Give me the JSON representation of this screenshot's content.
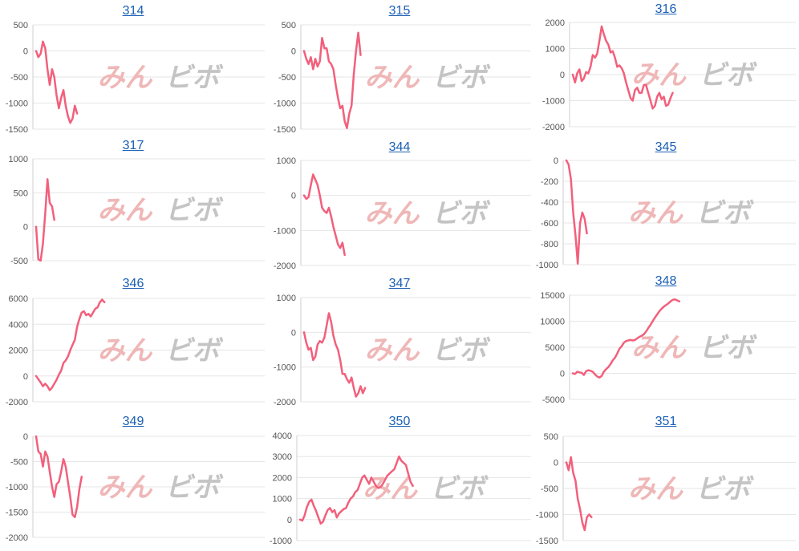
{
  "watermark": {
    "left": "みん",
    "right": "ビボ"
  },
  "colors": {
    "line": "#f2607c",
    "grid": "#e6e6e6",
    "axis": "#cfcfcf",
    "title": "#1a5fb4"
  },
  "chart_data": [
    {
      "type": "line",
      "title": "314",
      "ylim": [
        -1500,
        500
      ],
      "yticks": [
        500,
        0,
        -500,
        -1000,
        -1500
      ],
      "x_max": 100,
      "values": [
        0,
        -120,
        -50,
        180,
        50,
        -350,
        -650,
        -350,
        -500,
        -850,
        -1100,
        -900,
        -750,
        -1050,
        -1250,
        -1380,
        -1300,
        -1050,
        -1200
      ]
    },
    {
      "type": "line",
      "title": "315",
      "ylim": [
        -1500,
        500
      ],
      "yticks": [
        500,
        0,
        -500,
        -1000,
        -1500
      ],
      "x_max": 100,
      "values": [
        0,
        -150,
        -250,
        -120,
        -350,
        -150,
        -300,
        -200,
        250,
        50,
        50,
        -200,
        -250,
        -350,
        -650,
        -900,
        -1100,
        -1050,
        -1350,
        -1480,
        -1200,
        -1050,
        -450,
        0,
        350,
        -80
      ]
    },
    {
      "type": "line",
      "title": "316",
      "ylim": [
        -2000,
        2000
      ],
      "yticks": [
        2000,
        1000,
        0,
        -1000,
        -2000
      ],
      "x_max": 100,
      "values": [
        0,
        -300,
        50,
        200,
        -250,
        -150,
        100,
        50,
        300,
        750,
        650,
        800,
        1300,
        1850,
        1550,
        1300,
        1150,
        850,
        900,
        650,
        300,
        350,
        250,
        50,
        -300,
        -600,
        -900,
        -1000,
        -600,
        -500,
        -700,
        -700,
        -400,
        -400,
        -700,
        -1000,
        -1300,
        -1200,
        -850,
        -700,
        -950,
        -850,
        -1200,
        -1150,
        -900,
        -700
      ]
    },
    {
      "type": "line",
      "title": "317",
      "ylim": [
        -500,
        1000
      ],
      "yticks": [
        1000,
        500,
        0,
        -500
      ],
      "x_max": 100,
      "values": [
        0,
        -480,
        -500,
        -250,
        200,
        700,
        350,
        300,
        100
      ]
    },
    {
      "type": "line",
      "title": "344",
      "ylim": [
        -2000,
        1000
      ],
      "yticks": [
        1000,
        0,
        -1000,
        -2000
      ],
      "x_max": 100,
      "values": [
        0,
        -100,
        -50,
        300,
        600,
        450,
        300,
        0,
        -350,
        -450,
        -500,
        -350,
        -600,
        -900,
        -1150,
        -1400,
        -1500,
        -1350,
        -1700
      ]
    },
    {
      "type": "line",
      "title": "345",
      "ylim": [
        -1000,
        0
      ],
      "yticks": [
        0,
        -200,
        -400,
        -600,
        -800,
        -1000
      ],
      "x_max": 100,
      "values": [
        0,
        -40,
        -180,
        -500,
        -720,
        -990,
        -600,
        -500,
        -560,
        -700
      ]
    },
    {
      "type": "line",
      "title": "346",
      "ylim": [
        -2000,
        6000
      ],
      "yticks": [
        6000,
        4000,
        2000,
        0,
        -2000
      ],
      "x_max": 100,
      "values": [
        0,
        -250,
        -500,
        -800,
        -600,
        -800,
        -1100,
        -900,
        -600,
        -300,
        100,
        400,
        1000,
        1200,
        1500,
        2000,
        2400,
        2800,
        3800,
        4400,
        4900,
        5000,
        4700,
        4800,
        4600,
        4900,
        5200,
        5300,
        5700,
        5900,
        5700
      ]
    },
    {
      "type": "line",
      "title": "347",
      "ylim": [
        -2000,
        1000
      ],
      "yticks": [
        1000,
        0,
        -1000,
        -2000
      ],
      "x_max": 100,
      "values": [
        0,
        -300,
        -500,
        -450,
        -800,
        -700,
        -350,
        -250,
        -300,
        -150,
        200,
        550,
        300,
        -100,
        -350,
        -500,
        -800,
        -1200,
        -1200,
        -1350,
        -1450,
        -1300,
        -1600,
        -1850,
        -1750,
        -1550,
        -1750,
        -1600
      ]
    },
    {
      "type": "line",
      "title": "348",
      "ylim": [
        -5000,
        15000
      ],
      "yticks": [
        15000,
        10000,
        5000,
        0,
        -5000
      ],
      "x_max": 100,
      "values": [
        0,
        -100,
        300,
        200,
        100,
        -300,
        400,
        600,
        500,
        300,
        -200,
        -600,
        -800,
        -500,
        300,
        800,
        1200,
        1800,
        2500,
        3000,
        3800,
        4700,
        5200,
        5900,
        6200,
        6300,
        6400,
        6300,
        6400,
        6700,
        7000,
        7200,
        7500,
        8000,
        8700,
        9300,
        10000,
        10700,
        11300,
        11900,
        12400,
        12800,
        13100,
        13400,
        13800,
        14100,
        14200,
        14000,
        13800
      ]
    },
    {
      "type": "line",
      "title": "349",
      "ylim": [
        -2000,
        0
      ],
      "yticks": [
        0,
        -500,
        -1000,
        -1500,
        -2000
      ],
      "x_max": 100,
      "values": [
        0,
        -300,
        -350,
        -600,
        -300,
        -400,
        -700,
        -1000,
        -1200,
        -950,
        -900,
        -700,
        -450,
        -600,
        -900,
        -1200,
        -1550,
        -1600,
        -1400,
        -1050,
        -800
      ]
    },
    {
      "type": "line",
      "title": "350",
      "ylim": [
        -1000,
        4000
      ],
      "yticks": [
        4000,
        3000,
        2000,
        1000,
        0,
        -1000
      ],
      "x_max": 100,
      "values": [
        0,
        -50,
        200,
        600,
        850,
        950,
        650,
        400,
        100,
        -200,
        -100,
        200,
        450,
        550,
        350,
        450,
        100,
        300,
        400,
        500,
        550,
        800,
        1000,
        1100,
        1300,
        1400,
        1700,
        2000,
        2100,
        1900,
        1700,
        2000,
        1800,
        1600,
        1500,
        1550,
        1700,
        1900,
        2100,
        2200,
        2300,
        2400,
        2700,
        3000,
        2800,
        2700,
        2600,
        2200,
        1800,
        1600
      ]
    },
    {
      "type": "line",
      "title": "351",
      "ylim": [
        -1500,
        500
      ],
      "yticks": [
        500,
        0,
        -500,
        -1000,
        -1500
      ],
      "x_max": 100,
      "values": [
        0,
        -150,
        100,
        -200,
        -350,
        -700,
        -900,
        -1150,
        -1300,
        -1050,
        -1000,
        -1050
      ]
    }
  ]
}
